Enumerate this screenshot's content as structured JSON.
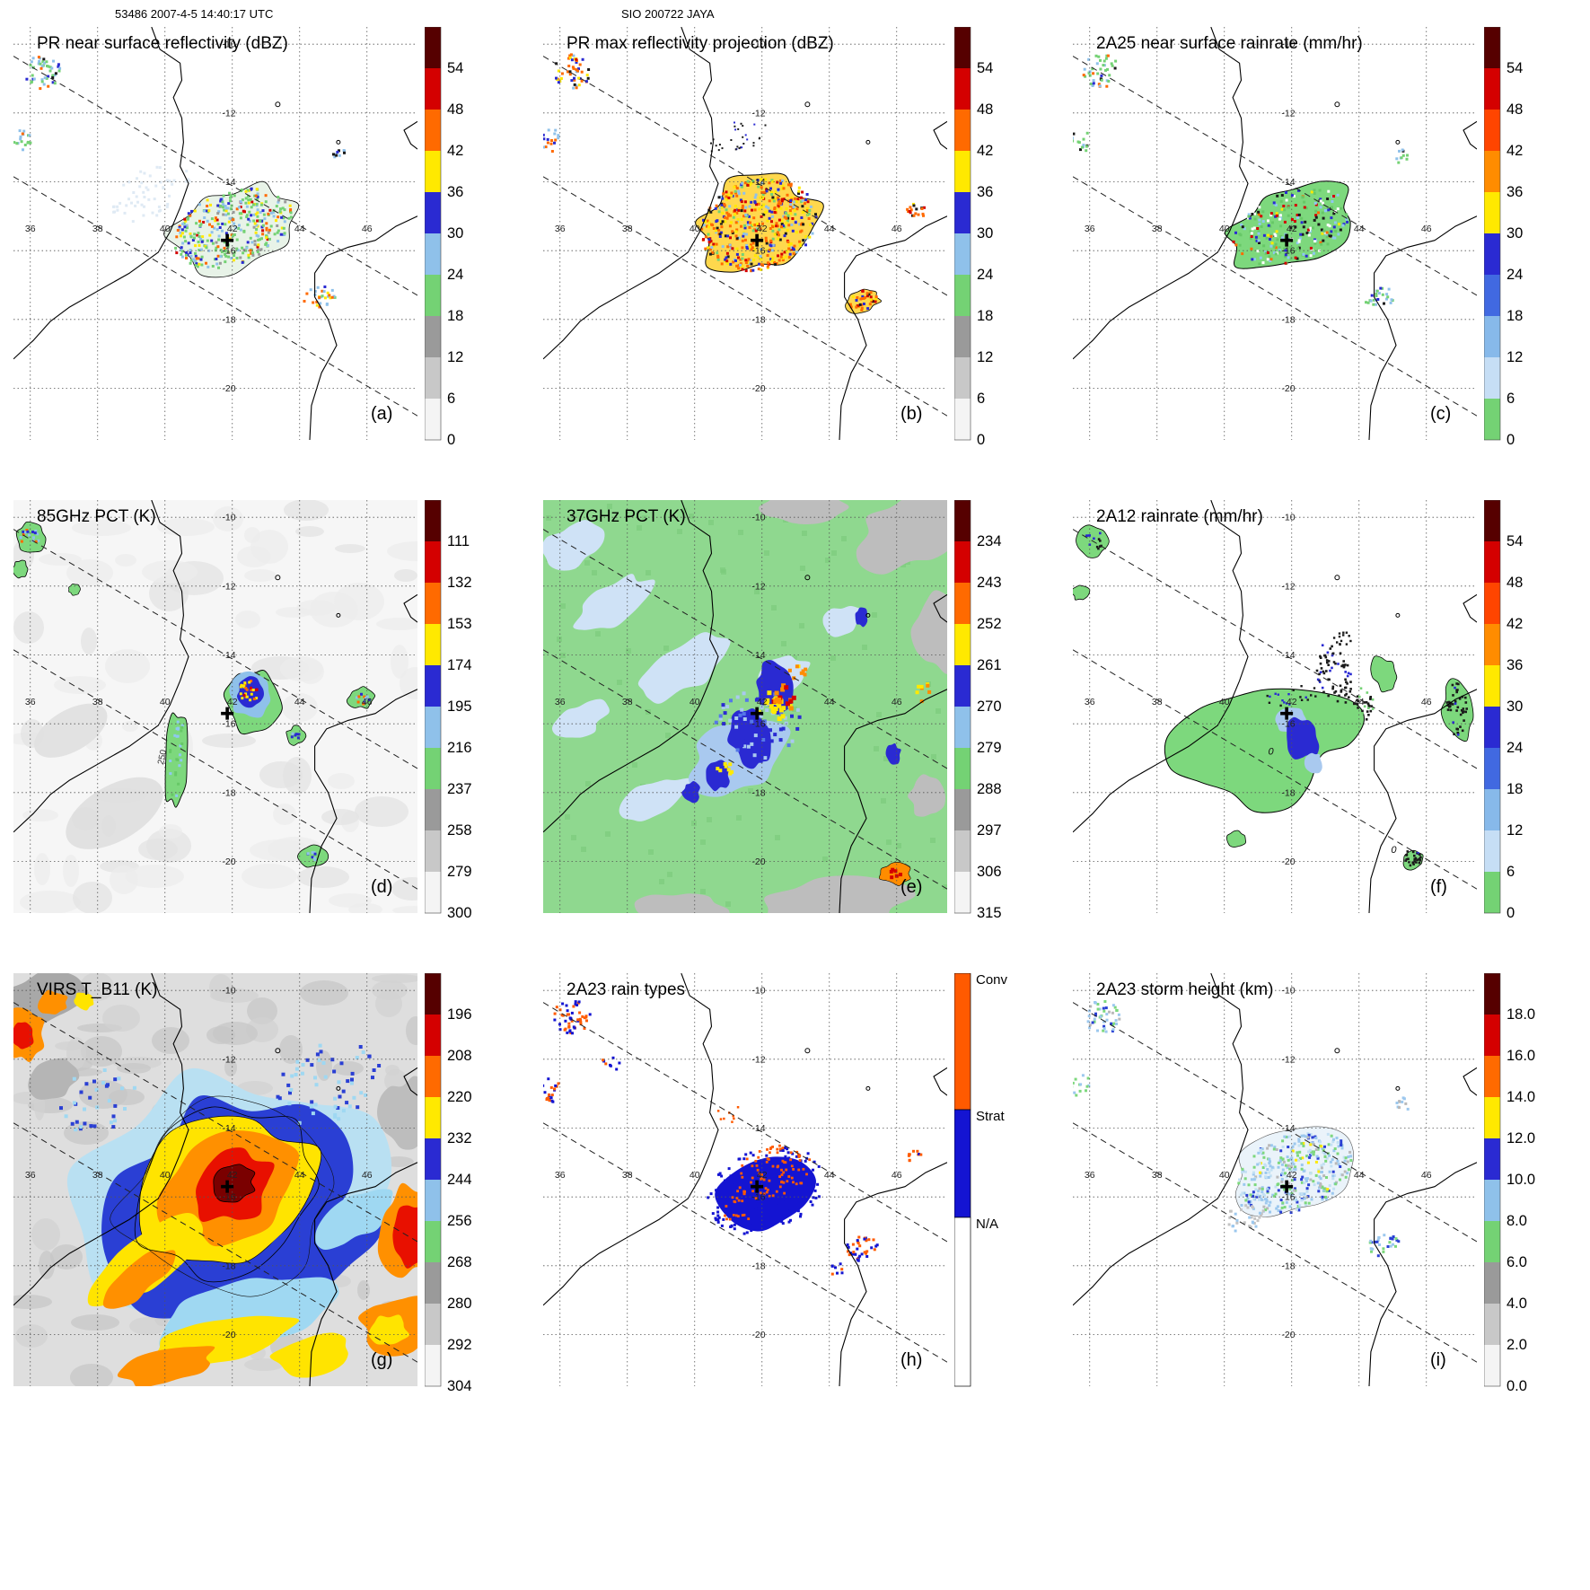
{
  "header": {
    "left_caption": "53486 2007-4-5 14:40:17 UTC",
    "center_caption": "SIO 200722 JAYA"
  },
  "map": {
    "lon_ticks": [
      "36",
      "38",
      "40",
      "42",
      "44",
      "46"
    ],
    "lat_ticks": [
      "-10",
      "-12",
      "-14",
      "-16",
      "-18",
      "-20"
    ],
    "storm_marker": "+"
  },
  "colors": {
    "reflectivity": [
      "#560000",
      "#d40000",
      "#ff6a00",
      "#ffe900",
      "#2a2ad2",
      "#8fc1ea",
      "#74d274",
      "#9a9a9a",
      "#c8c8c8",
      "#f4f4f4"
    ],
    "rainrate": [
      "#560000",
      "#d40000",
      "#ff4500",
      "#ff8c00",
      "#ffe900",
      "#2a2ad2",
      "#4169e1",
      "#87b9ea",
      "#c6def5",
      "#74d274"
    ],
    "rain_types": {
      "conv": "#ff5a00",
      "strat": "#1414d2",
      "na": "#ffffff"
    },
    "coastline": "#000000"
  },
  "panels": [
    {
      "id": "a",
      "title": "PR near surface reflectivity (dBZ)",
      "letter": "(a)",
      "cbar_type": "ticks",
      "scale": "reflectivity",
      "ticks": [
        "54",
        "48",
        "42",
        "36",
        "30",
        "24",
        "18",
        "12",
        "6",
        "0"
      ]
    },
    {
      "id": "b",
      "title": "PR max reflectivity projection (dBZ)",
      "letter": "(b)",
      "cbar_type": "ticks",
      "scale": "reflectivity",
      "ticks": [
        "54",
        "48",
        "42",
        "36",
        "30",
        "24",
        "18",
        "12",
        "6",
        "0"
      ]
    },
    {
      "id": "c",
      "title": "2A25 near surface rainrate (mm/hr)",
      "letter": "(c)",
      "cbar_type": "ticks",
      "scale": "rainrate",
      "ticks": [
        "54",
        "48",
        "42",
        "36",
        "30",
        "24",
        "18",
        "12",
        "6",
        "0"
      ]
    },
    {
      "id": "d",
      "title": "85GHz PCT (K)",
      "letter": "(d)",
      "cbar_type": "ticks",
      "scale": "reflectivity",
      "ticks": [
        "111",
        "132",
        "153",
        "174",
        "195",
        "216",
        "237",
        "258",
        "279",
        "300"
      ],
      "contour_label": "250"
    },
    {
      "id": "e",
      "title": "37GHz PCT (K)",
      "letter": "(e)",
      "cbar_type": "ticks",
      "scale": "reflectivity",
      "ticks": [
        "234",
        "243",
        "252",
        "261",
        "270",
        "279",
        "288",
        "297",
        "306",
        "315"
      ]
    },
    {
      "id": "f",
      "title": "2A12 rainrate (mm/hr)",
      "letter": "(f)",
      "cbar_type": "ticks",
      "scale": "rainrate",
      "ticks": [
        "54",
        "48",
        "42",
        "36",
        "30",
        "24",
        "18",
        "12",
        "6",
        "0"
      ],
      "contour_label": "0"
    },
    {
      "id": "g",
      "title": "VIRS T_B11 (K)",
      "letter": "(g)",
      "cbar_type": "ticks",
      "scale": "reflectivity",
      "ticks": [
        "196",
        "208",
        "220",
        "232",
        "244",
        "256",
        "268",
        "280",
        "292",
        "304"
      ]
    },
    {
      "id": "h",
      "title": "2A23 rain types",
      "letter": "(h)",
      "cbar_type": "raintypes",
      "labels": [
        "Conv",
        "Strat",
        "N/A"
      ]
    },
    {
      "id": "i",
      "title": "2A23 storm height (km)",
      "letter": "(i)",
      "cbar_type": "ticks",
      "scale": "reflectivity",
      "ticks": [
        "18.0",
        "16.0",
        "14.0",
        "12.0",
        "10.0",
        "8.0",
        "6.0",
        "4.0",
        "2.0",
        "0.0"
      ]
    }
  ],
  "chart_data": {
    "type": "heatmap",
    "figure_title": "SIO 200722 JAYA",
    "scan_info": "53486 2007-4-5 14:40:17 UTC",
    "layout": "3x3 panels, each a lon/lat map with vertical colorbar at right",
    "map_extent": {
      "lon_min": 35.5,
      "lon_max": 47.5,
      "lat_min": -21.5,
      "lat_max": -9.5
    },
    "lon_ticks": [
      36,
      38,
      40,
      42,
      44,
      46
    ],
    "lat_ticks": [
      -10,
      -12,
      -14,
      -16,
      -18,
      -20
    ],
    "storm_center_marker_lonlat": [
      41.9,
      -15.7
    ],
    "panels": [
      {
        "letter": "a",
        "title": "PR near surface reflectivity (dBZ)",
        "units": "dBZ",
        "colorbar_ticks": [
          54,
          48,
          42,
          36,
          30,
          24,
          18,
          12,
          6,
          0
        ]
      },
      {
        "letter": "b",
        "title": "PR max reflectivity projection (dBZ)",
        "units": "dBZ",
        "colorbar_ticks": [
          54,
          48,
          42,
          36,
          30,
          24,
          18,
          12,
          6,
          0
        ]
      },
      {
        "letter": "c",
        "title": "2A25 near surface rainrate (mm/hr)",
        "units": "mm/hr",
        "colorbar_ticks": [
          54,
          48,
          42,
          36,
          30,
          24,
          18,
          12,
          6,
          0
        ]
      },
      {
        "letter": "d",
        "title": "85GHz PCT (K)",
        "units": "K",
        "colorbar_ticks": [
          111,
          132,
          153,
          174,
          195,
          216,
          237,
          258,
          279,
          300
        ],
        "contour_label": "250"
      },
      {
        "letter": "e",
        "title": "37GHz PCT (K)",
        "units": "K",
        "colorbar_ticks": [
          234,
          243,
          252,
          261,
          270,
          279,
          288,
          297,
          306,
          315
        ]
      },
      {
        "letter": "f",
        "title": "2A12 rainrate (mm/hr)",
        "units": "mm/hr",
        "colorbar_ticks": [
          54,
          48,
          42,
          36,
          30,
          24,
          18,
          12,
          6,
          0
        ],
        "contour_label": "0"
      },
      {
        "letter": "g",
        "title": "VIRS T_B11 (K)",
        "units": "K",
        "colorbar_ticks": [
          196,
          208,
          220,
          232,
          244,
          256,
          268,
          280,
          292,
          304
        ]
      },
      {
        "letter": "h",
        "title": "2A23 rain types",
        "categories": [
          "Conv",
          "Strat",
          "N/A"
        ]
      },
      {
        "letter": "i",
        "title": "2A23 storm height (km)",
        "units": "km",
        "colorbar_ticks": [
          18.0,
          16.0,
          14.0,
          12.0,
          10.0,
          8.0,
          6.0,
          4.0,
          2.0,
          0.0
        ]
      }
    ]
  }
}
